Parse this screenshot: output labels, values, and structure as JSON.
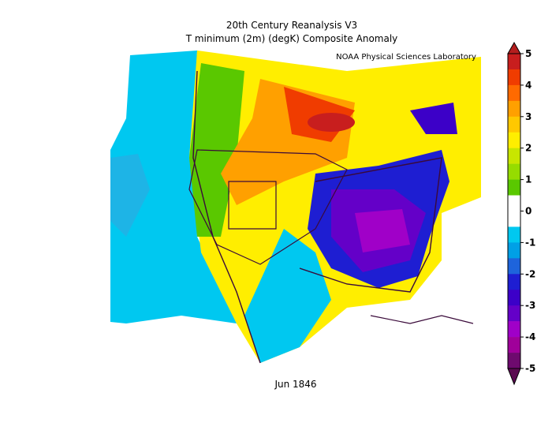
{
  "map": {
    "title": "20th Century Reanalysis V3",
    "subtitle": "T minimum (2m) (degK) Composite Anomaly",
    "credit": "NOAA Physical Sciences Laboratory",
    "date": "Jun 1846"
  },
  "colorbar": {
    "lim": [
      -5,
      5
    ],
    "ticks": [
      -5,
      -4,
      -3,
      -2,
      -1,
      0,
      1,
      2,
      3,
      4,
      5
    ],
    "colors": [
      "#c81e1e",
      "#f03c00",
      "#ff6a00",
      "#ffa000",
      "#ffc800",
      "#ffee00",
      "#c8e600",
      "#96dc00",
      "#5ac800",
      "#ffffff",
      "#ffffff",
      "#00c8f0",
      "#00a0e6",
      "#1e64dc",
      "#1e1ed2",
      "#3c00c8",
      "#6400c8",
      "#a000c8",
      "#a0009a",
      "#6e0a6e"
    ],
    "under": "#5a0a50",
    "over": "#b41e1e"
  }
}
